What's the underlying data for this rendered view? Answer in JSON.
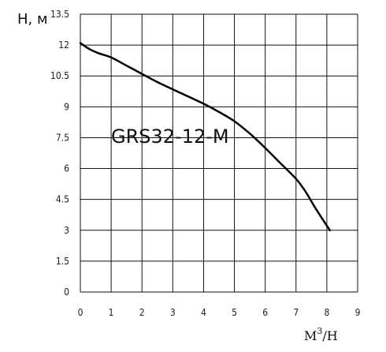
{
  "chart_data": {
    "type": "line",
    "title": "",
    "ylabel": "H, м",
    "xlabel": {
      "base": "M",
      "sup": "3",
      "tail": "/H"
    },
    "annotation": "GRS32-12-M",
    "xlim": [
      0,
      9
    ],
    "ylim": [
      0,
      13.5
    ],
    "x_ticks": [
      "0",
      "1",
      "2",
      "3",
      "4",
      "5",
      "6",
      "7",
      "8",
      "9"
    ],
    "y_ticks": [
      "0",
      "1.5",
      "3",
      "4.5",
      "6",
      "7.5",
      "9",
      "10.5",
      "12",
      "13.5"
    ],
    "grid": true,
    "series": [
      {
        "x": [
          0,
          0.3,
          0.6,
          1.0,
          1.5,
          2.0,
          2.5,
          3.0,
          3.5,
          4.0,
          4.5,
          5.0,
          5.5,
          6.0,
          6.5,
          7.0,
          7.3,
          7.6,
          7.9,
          8.1
        ],
        "y": [
          12.1,
          11.8,
          11.6,
          11.4,
          11.0,
          10.6,
          10.2,
          9.85,
          9.5,
          9.15,
          8.75,
          8.3,
          7.7,
          7.0,
          6.25,
          5.5,
          4.9,
          4.15,
          3.45,
          3.0
        ]
      }
    ]
  }
}
